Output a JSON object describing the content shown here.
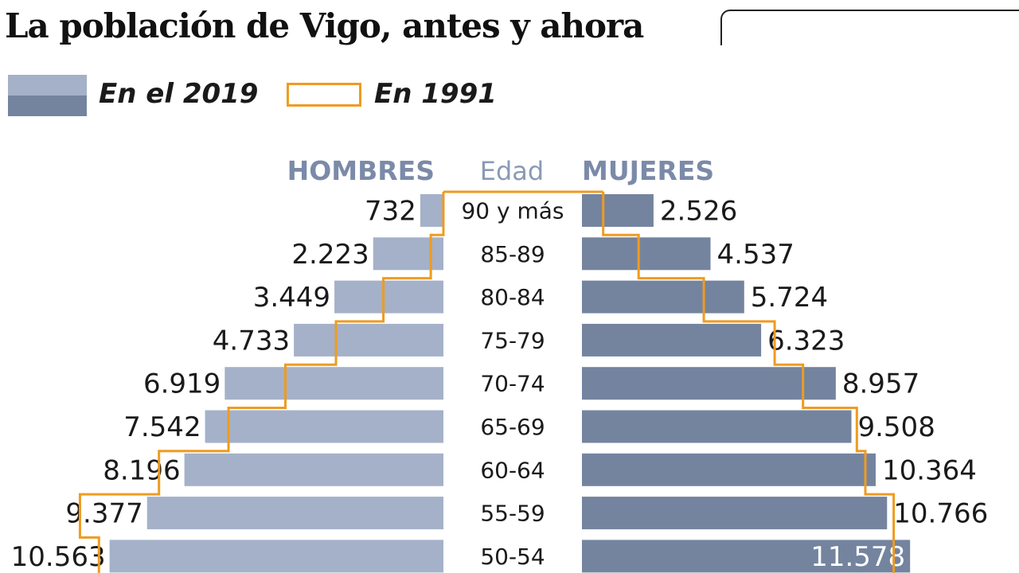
{
  "title": "La población de Vigo, antes y ahora",
  "legend": {
    "items": [
      {
        "label": "En el 2019",
        "colors": [
          "#a4b1c9",
          "#74849f"
        ]
      },
      {
        "label": "En 1991",
        "color": "#ef9b20"
      }
    ]
  },
  "colors": {
    "men_bar": "#a4b1c9",
    "women_bar": "#74849f",
    "outline_1991": "#ef9b20",
    "header": "#7b8aa8"
  },
  "chart_data": {
    "type": "bar",
    "orientation": "horizontal",
    "layout": "population-pyramid",
    "headers": {
      "left": "HOMBRES",
      "center": "Edad",
      "right": "MUJERES"
    },
    "categories": [
      "90 y más",
      "85-89",
      "80-84",
      "75-79",
      "70-74",
      "65-69",
      "60-64",
      "55-59",
      "50-54"
    ],
    "series": [
      {
        "name": "HOMBRES",
        "side": "left",
        "values": [
          732,
          2223,
          3449,
          4733,
          6919,
          7542,
          8196,
          9377,
          10563
        ],
        "labels": [
          "732",
          "2.223",
          "3.449",
          "4.733",
          "6.919",
          "7.542",
          "8.196",
          "9.377",
          "10.563"
        ]
      },
      {
        "name": "MUJERES",
        "side": "right",
        "values": [
          2526,
          4537,
          5724,
          6323,
          8957,
          9508,
          10364,
          10766,
          11578
        ],
        "labels": [
          "2.526",
          "4.537",
          "5.724",
          "6.323",
          "8.957",
          "9.508",
          "10.364",
          "10.766",
          "11.578"
        ]
      }
    ],
    "outline_1991": {
      "men": [
        0,
        400,
        1900,
        3400,
        5000,
        6800,
        9000,
        11500,
        10900
      ],
      "women": [
        750,
        2000,
        4300,
        6800,
        7800,
        9700,
        10000,
        11000,
        11000
      ]
    }
  }
}
